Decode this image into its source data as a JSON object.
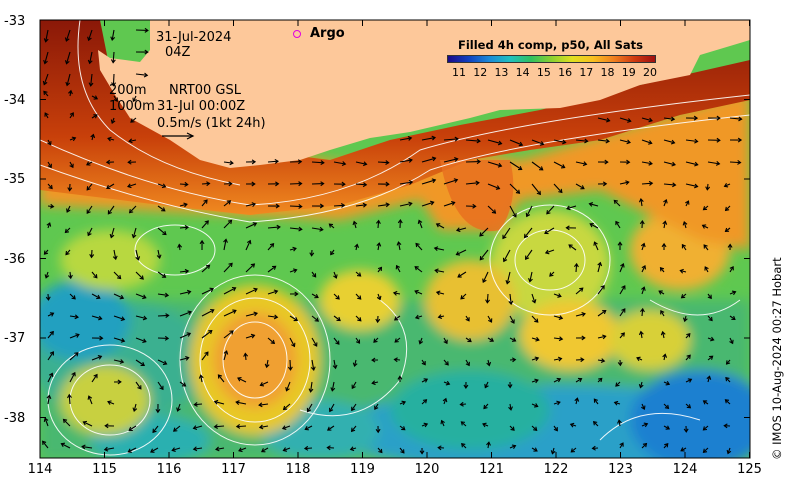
{
  "map": {
    "date": "31-Jul-2024",
    "time": "04Z",
    "argo_label": "Argo",
    "legend_title": "Filled 4h comp, p50, All Sats",
    "colorbar_ticks": [
      "11",
      "12",
      "13",
      "14",
      "15",
      "16",
      "17",
      "18",
      "19",
      "20"
    ],
    "contour_line1": "200m",
    "contour_line2": "1000m",
    "product": "NRT00 GSL",
    "product_time": "31-Jul 00:00Z",
    "velocity_scale": "0.5m/s (1kt 24h)",
    "credit": "© IMOS 10-Aug-2024 00:27 Hobart",
    "y_ticks": [
      "-33",
      "-34",
      "-35",
      "-36",
      "-37",
      "-38"
    ],
    "x_ticks": [
      "114",
      "115",
      "116",
      "117",
      "118",
      "119",
      "120",
      "121",
      "122",
      "123",
      "124",
      "125"
    ],
    "colors": {
      "land": "#fdc89a",
      "warm": "#a01810",
      "cool": "#1f9cd8",
      "argo": "#e000e0"
    }
  }
}
